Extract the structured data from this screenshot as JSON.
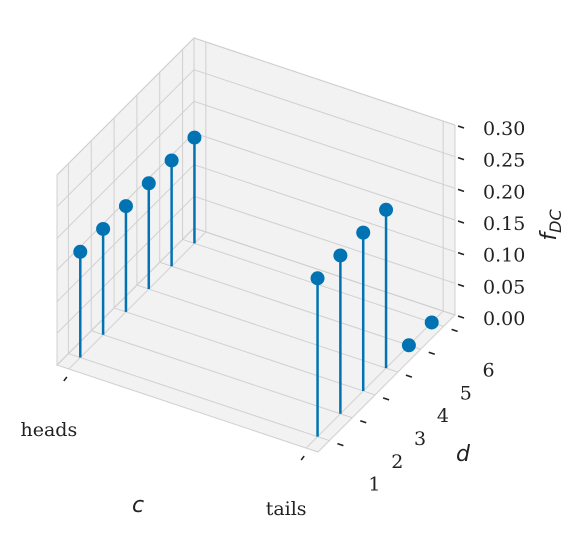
{
  "chart_data": {
    "type": "stem3d",
    "xlabel": "c",
    "ylabel": "d",
    "zlabel": {
      "text": "f",
      "subscript": "DC"
    },
    "categories": [
      "heads",
      "tails"
    ],
    "y": [
      1,
      2,
      3,
      4,
      5,
      6
    ],
    "values": [
      [
        0.167,
        0.167,
        0.167,
        0.167,
        0.167,
        0.167
      ],
      [
        0.25,
        0.25,
        0.25,
        0.25,
        0,
        0
      ]
    ],
    "color": "#0173b2",
    "ylim": [
      0.5,
      6.5
    ],
    "yticks": [
      1,
      2,
      3,
      4,
      5,
      6
    ],
    "zlim": [
      0,
      0.3
    ],
    "zticks": [
      {
        "value": 0,
        "label": "0.00"
      },
      {
        "value": 0.05,
        "label": "0.05"
      },
      {
        "value": 0.1,
        "label": "0.10"
      },
      {
        "value": 0.15,
        "label": "0.15"
      },
      {
        "value": 0.2,
        "label": "0.20"
      },
      {
        "value": 0.25,
        "label": "0.25"
      },
      {
        "value": 0.3,
        "label": "0.30"
      }
    ],
    "grid": true
  }
}
